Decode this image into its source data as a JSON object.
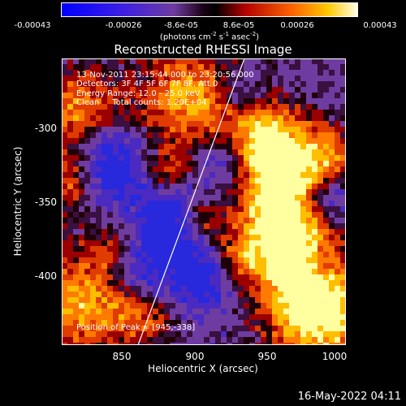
{
  "colorbar": {
    "tick_labels": [
      "-0.00043",
      "-0.00026",
      "-8.6e-05",
      "8.6e-05",
      "0.00026",
      "0.00043"
    ],
    "units_prefix": "(photons cm",
    "units_exp1": "-2",
    "units_mid1": " s",
    "units_exp2": "-1",
    "units_mid2": " asec",
    "units_exp3": "-2",
    "units_suffix": ")"
  },
  "title": "Reconstructed RHESSI Image",
  "info": {
    "time_range": "13-Nov-2011 23:15:44.000 to 23:20:56.000",
    "detectors": "Detectors: 3F 4F 5F 6F 7F 8F, Att 0",
    "energy": "Energy Range: 12.0 - 25.0 keV",
    "clean": "Clean     Total counts: 1.20E+04"
  },
  "peak": "Position of Peak = [945,-338]",
  "axes": {
    "xlabel": "Heliocentric X (arcsec)",
    "ylabel": "Heliocentric Y (arcsec)",
    "x_ticks": [
      "850",
      "900",
      "950",
      "1000"
    ],
    "y_ticks": [
      "-300",
      "-350",
      "-400"
    ]
  },
  "date": "16-May-2022 04:11",
  "colors": {
    "colormap": [
      "#0000ff",
      "#5028c8",
      "#6e3ca0",
      "#2a0a20",
      "#000000",
      "#8c0000",
      "#ff5a00",
      "#ffc800",
      "#ffffc8"
    ]
  }
}
